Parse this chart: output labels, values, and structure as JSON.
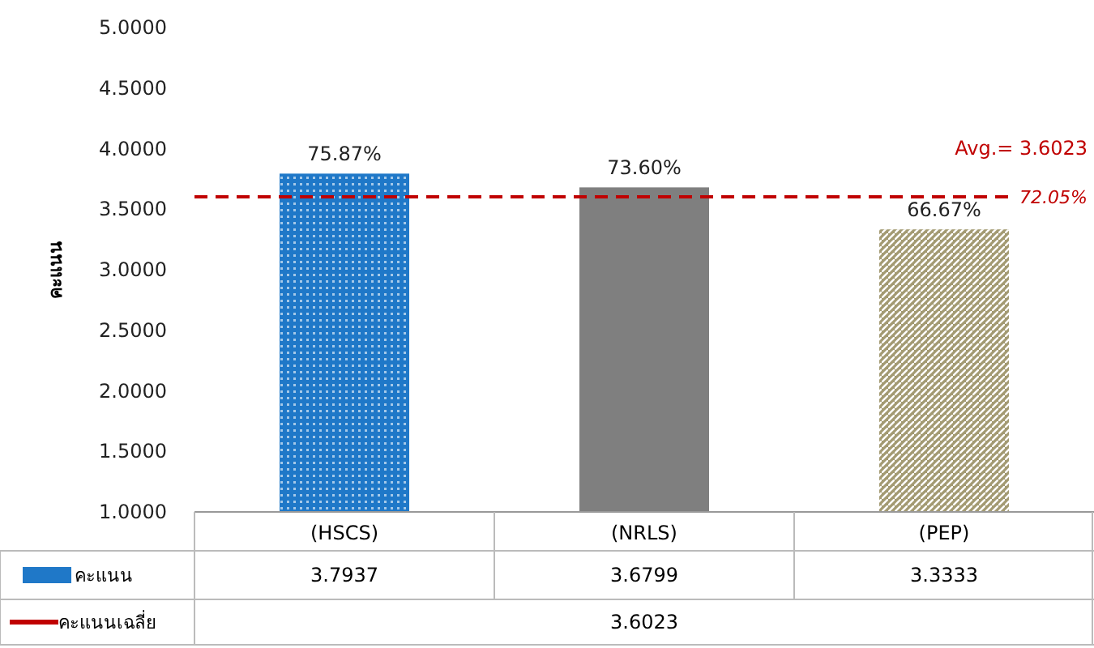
{
  "chart_data": {
    "type": "bar",
    "ylabel": "คะแนน",
    "categories": [
      "(HSCS)",
      "(NRLS)",
      "(PEP)"
    ],
    "series": [
      {
        "name": "คะแนน",
        "color": "#1f78c8",
        "colors": [
          "#1f78c8",
          "#7f7f7f",
          "#a39a72"
        ],
        "values": [
          3.7937,
          3.6799,
          3.3333
        ],
        "value_labels": [
          "3.7937",
          "3.6799",
          "3.3333"
        ]
      }
    ],
    "ref_lines": [
      {
        "axis": "y",
        "value": 3.6023,
        "label": "Avg.= 3.6023",
        "color": "#c00000",
        "line_style": "dashed"
      }
    ],
    "ylim": [
      1,
      5
    ],
    "yticks": [
      {
        "value": 1,
        "label": "1.0000"
      },
      {
        "value": 1.5,
        "label": "1.5000"
      },
      {
        "value": 2,
        "label": "2.0000"
      },
      {
        "value": 2.5,
        "label": "2.5000"
      },
      {
        "value": 3,
        "label": "3.0000"
      },
      {
        "value": 3.5,
        "label": "3.5000"
      },
      {
        "value": 4,
        "label": "4.0000"
      },
      {
        "value": 4.5,
        "label": "4.5000"
      },
      {
        "value": 5,
        "label": "5.0000"
      }
    ],
    "legend": "bottom left",
    "annotations": [
      "คะแนนเฉลี่ย",
      "72.05%",
      "3.6023",
      {
        "text": "75.87%",
        "x": "(HSCS)",
        "y": 3.7937
      },
      {
        "text": "73.60%",
        "x": "(NRLS)",
        "y": 3.6799
      },
      {
        "text": "66.67%",
        "x": "(PEP)",
        "y": 3.3333
      }
    ]
  }
}
